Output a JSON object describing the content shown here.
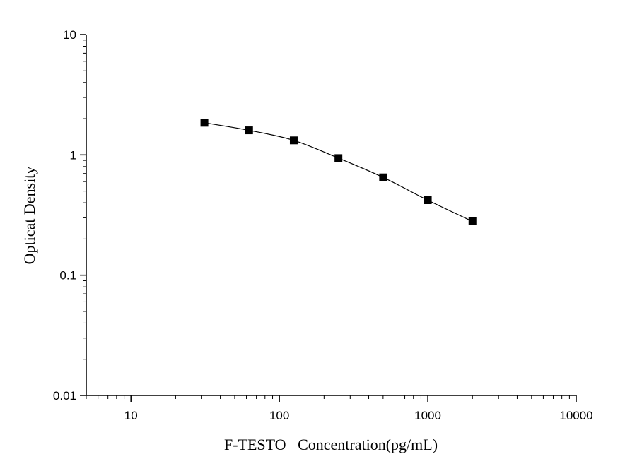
{
  "chart_data": {
    "type": "scatter",
    "title": "",
    "xlabel": "F-TESTO   Concentration(pg/mL)",
    "ylabel": "Opticat Density",
    "x_scale": "log",
    "y_scale": "log",
    "xlim": [
      5,
      10000
    ],
    "ylim": [
      0.01,
      10
    ],
    "x_ticks": [
      10,
      100,
      1000,
      10000
    ],
    "x_tick_labels": [
      "10",
      "100",
      "1000",
      "10000"
    ],
    "y_ticks": [
      0.01,
      0.1,
      1,
      10
    ],
    "y_tick_labels": [
      "0.01",
      "0.1",
      "1",
      "10"
    ],
    "grid": false,
    "legend": "none",
    "series": [
      {
        "x": [
          31.25,
          62.5,
          125,
          250,
          500,
          1000,
          2000
        ],
        "y": [
          1.85,
          1.6,
          1.32,
          0.94,
          0.65,
          0.42,
          0.28
        ],
        "marker": "square",
        "fit_line": true
      }
    ],
    "colors": {
      "marker": "#000000",
      "line": "#000000",
      "axis": "#000000"
    }
  }
}
